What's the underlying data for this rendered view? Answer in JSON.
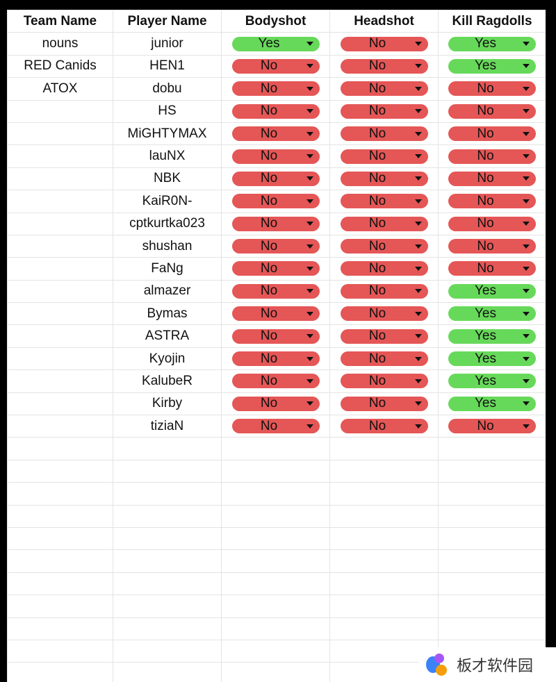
{
  "headers": [
    "Team Name",
    "Player Name",
    "Bodyshot",
    "Headshot",
    "Kill Ragdolls"
  ],
  "rows": [
    {
      "team": "nouns",
      "player": "junior",
      "bodyshot": "Yes",
      "headshot": "No",
      "kill_ragdolls": "Yes"
    },
    {
      "team": "RED Canids",
      "player": "HEN1",
      "bodyshot": "No",
      "headshot": "No",
      "kill_ragdolls": "Yes"
    },
    {
      "team": "ATOX",
      "player": "dobu",
      "bodyshot": "No",
      "headshot": "No",
      "kill_ragdolls": "No"
    },
    {
      "team": "",
      "player": "HS",
      "bodyshot": "No",
      "headshot": "No",
      "kill_ragdolls": "No"
    },
    {
      "team": "",
      "player": "MiGHTYMAX",
      "bodyshot": "No",
      "headshot": "No",
      "kill_ragdolls": "No"
    },
    {
      "team": "",
      "player": "lauNX",
      "bodyshot": "No",
      "headshot": "No",
      "kill_ragdolls": "No"
    },
    {
      "team": "",
      "player": "NBK",
      "bodyshot": "No",
      "headshot": "No",
      "kill_ragdolls": "No"
    },
    {
      "team": "",
      "player": "KaiR0N-",
      "bodyshot": "No",
      "headshot": "No",
      "kill_ragdolls": "No"
    },
    {
      "team": "",
      "player": "cptkurtka023",
      "bodyshot": "No",
      "headshot": "No",
      "kill_ragdolls": "No"
    },
    {
      "team": "",
      "player": "shushan",
      "bodyshot": "No",
      "headshot": "No",
      "kill_ragdolls": "No"
    },
    {
      "team": "",
      "player": "FaNg",
      "bodyshot": "No",
      "headshot": "No",
      "kill_ragdolls": "No"
    },
    {
      "team": "",
      "player": "almazer",
      "bodyshot": "No",
      "headshot": "No",
      "kill_ragdolls": "Yes"
    },
    {
      "team": "",
      "player": "Bymas",
      "bodyshot": "No",
      "headshot": "No",
      "kill_ragdolls": "Yes"
    },
    {
      "team": "",
      "player": "ASTRA",
      "bodyshot": "No",
      "headshot": "No",
      "kill_ragdolls": "Yes"
    },
    {
      "team": "",
      "player": "Kyojin",
      "bodyshot": "No",
      "headshot": "No",
      "kill_ragdolls": "Yes"
    },
    {
      "team": "",
      "player": "KalubeR",
      "bodyshot": "No",
      "headshot": "No",
      "kill_ragdolls": "Yes"
    },
    {
      "team": "",
      "player": "Kirby",
      "bodyshot": "No",
      "headshot": "No",
      "kill_ragdolls": "Yes"
    },
    {
      "team": "",
      "player": "tiziaN",
      "bodyshot": "No",
      "headshot": "No",
      "kill_ragdolls": "No"
    }
  ],
  "empty_rows": 11,
  "colors": {
    "yes": "#67d95a",
    "no": "#e55656"
  },
  "watermark": {
    "text": "板才软件园",
    "icon": "app-logo-icon"
  }
}
